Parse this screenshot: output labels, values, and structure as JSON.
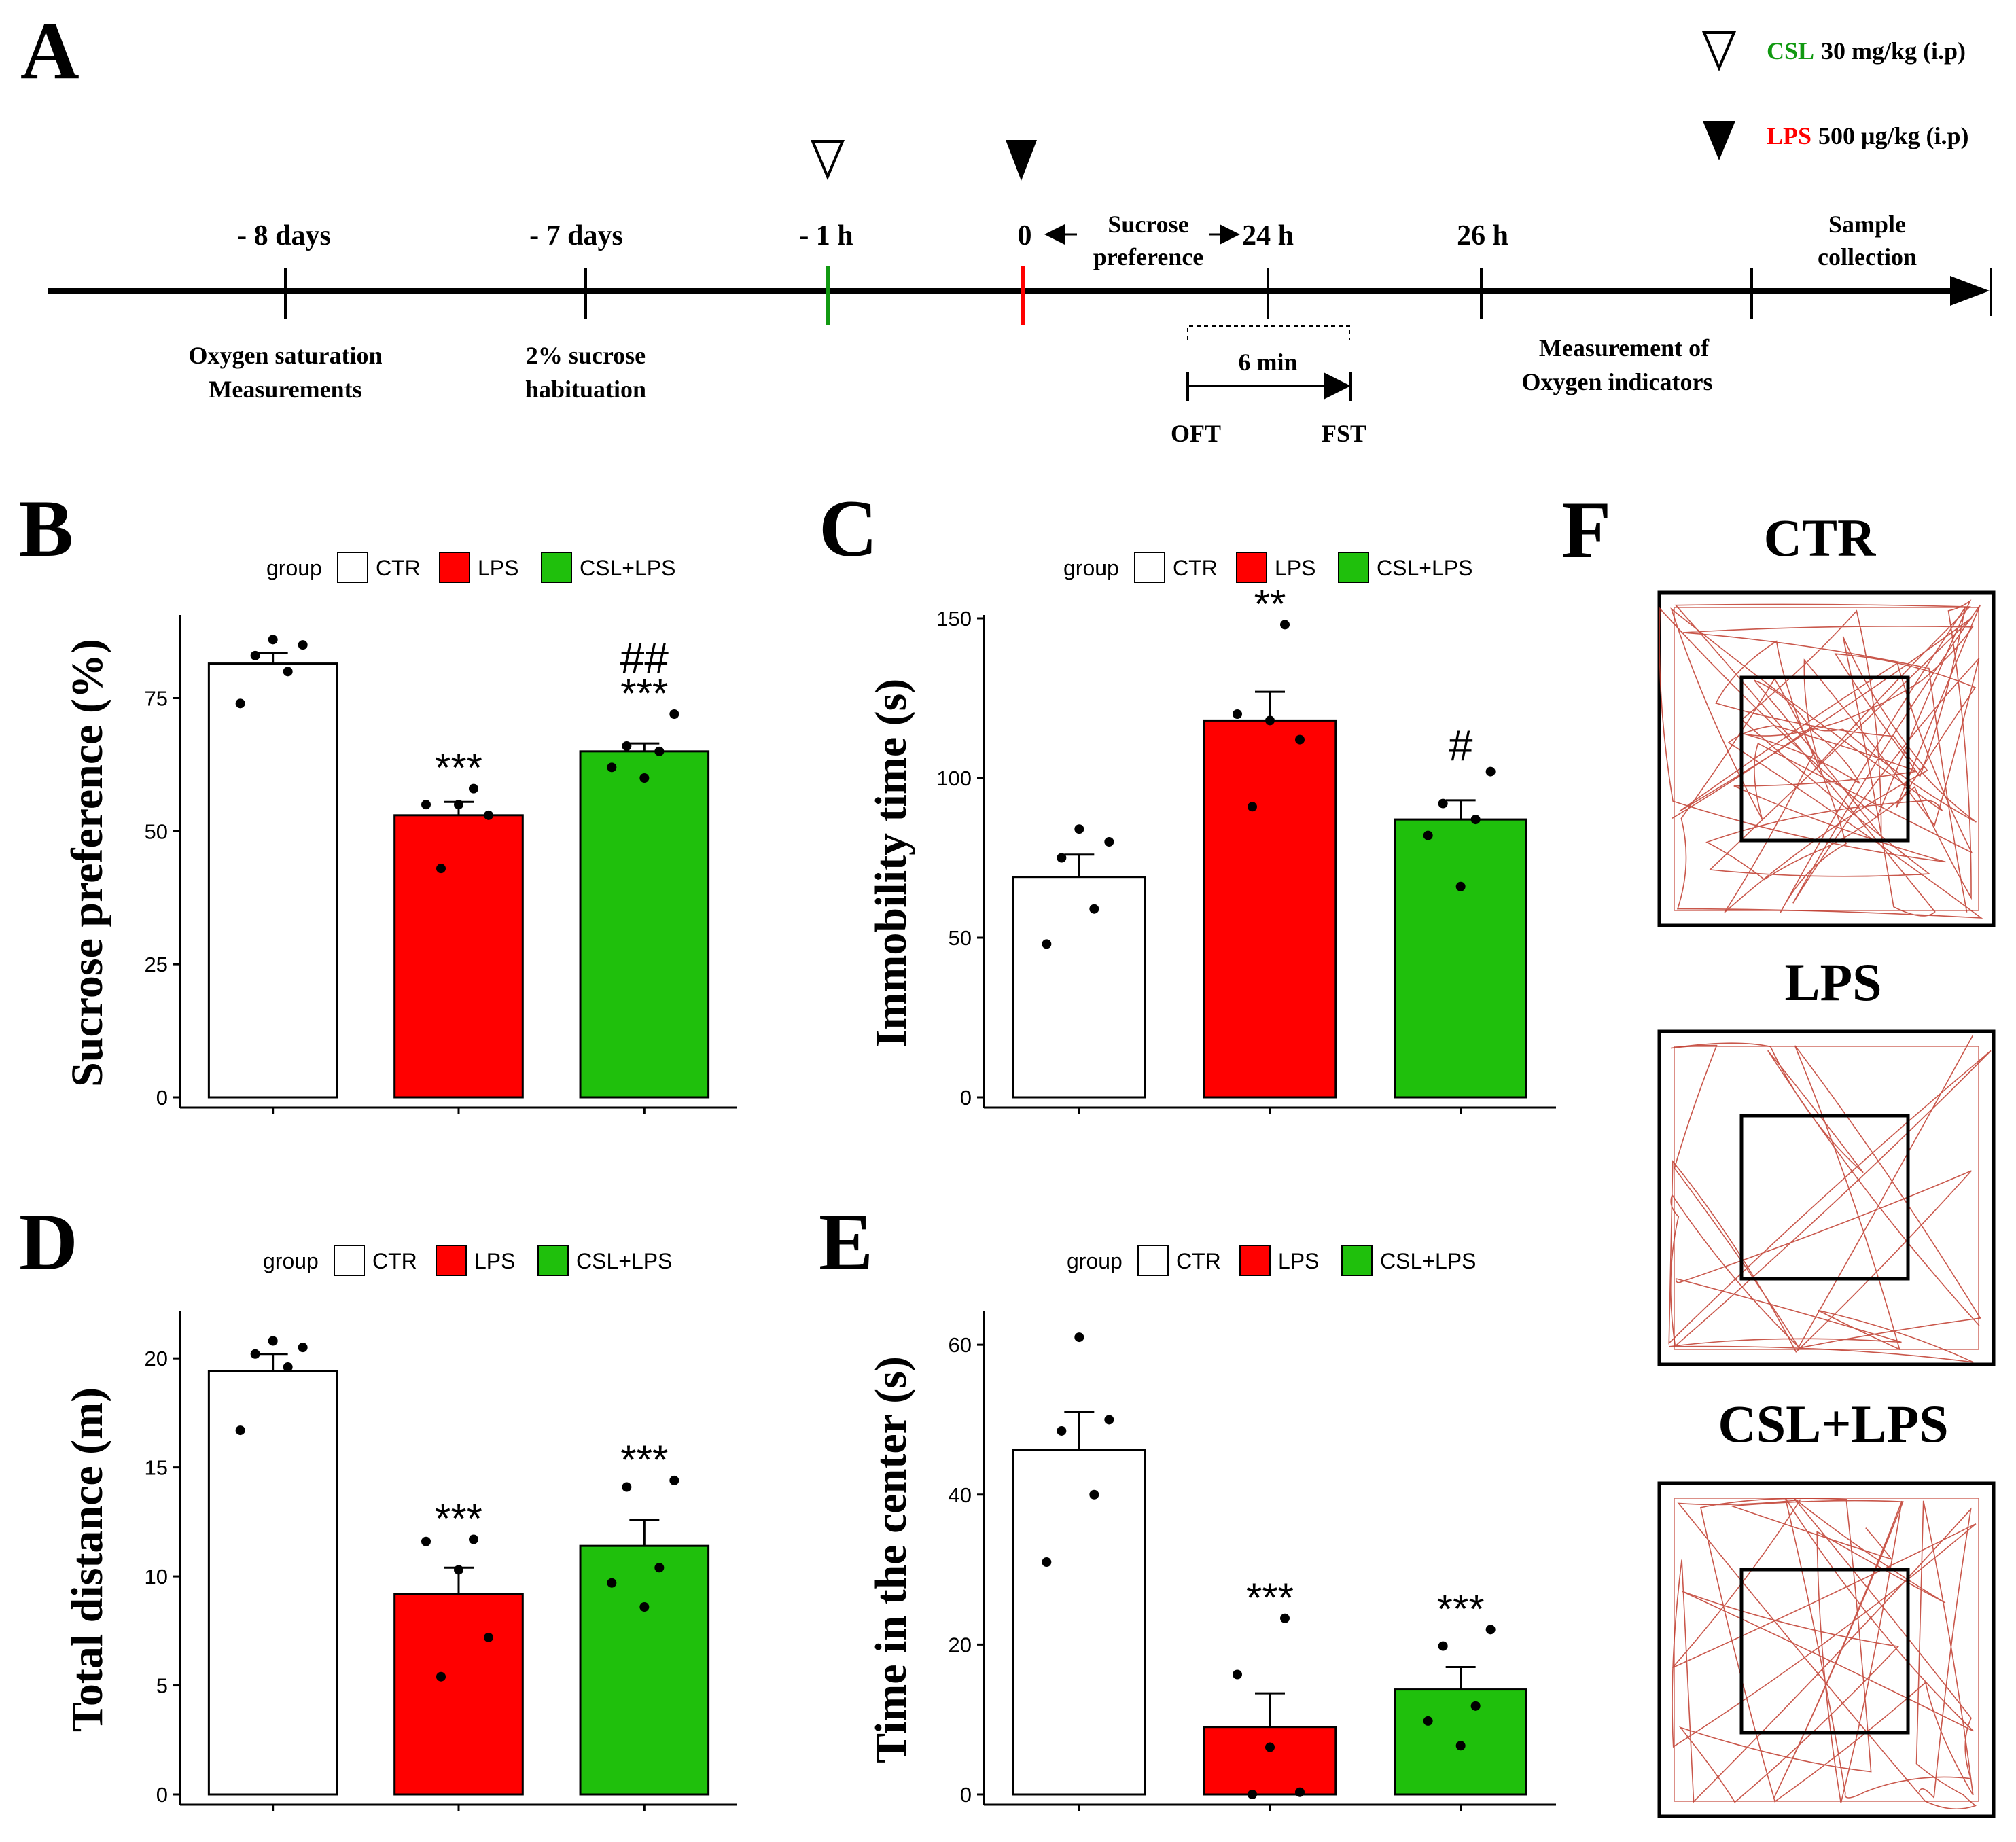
{
  "colors": {
    "ctr": "#ffffff",
    "lps": "#ff0000",
    "csl": "#1fc00c",
    "timeline_csl": "#119911",
    "timeline_lps": "#ff0000",
    "track": "#c0392b"
  },
  "panel_a": {
    "letter": "A",
    "legend": [
      {
        "icon": "open-triangle-icon",
        "drug": "CSL",
        "dose": "30 mg/kg (i.p)"
      },
      {
        "icon": "filled-triangle-icon",
        "drug": "LPS",
        "dose": "500 μg/kg (i.p)"
      }
    ],
    "ticks": [
      {
        "label": "- 8 days",
        "note1": "Oxygen saturation",
        "note2": "Measurements"
      },
      {
        "label": "- 7 days",
        "note1": "2% sucrose",
        "note2": "habituation"
      },
      {
        "label": "- 1 h"
      },
      {
        "label": "0"
      },
      {
        "label": "24 h"
      },
      {
        "label": "26 h",
        "note1": "Measurement of",
        "note2": "Oxygen indicators"
      },
      {
        "label": "",
        "top1": "Sample",
        "top2": "collection"
      }
    ],
    "sucrose1": "Sucrose",
    "sucrose2": "preference",
    "six_min": "6 min",
    "oft": "OFT",
    "fst": "FST"
  },
  "legend_group": "group",
  "chart_data": [
    {
      "panel": "B",
      "type": "bar",
      "categories": [
        "CTR",
        "LPS",
        "CSL+LPS"
      ],
      "values": [
        81.5,
        53,
        65
      ],
      "errors": [
        2,
        2.5,
        1.5
      ],
      "points": [
        [
          74,
          80,
          83,
          85,
          86
        ],
        [
          43,
          53,
          55,
          55,
          58
        ],
        [
          60,
          62,
          65,
          66,
          72
        ]
      ],
      "ylabel": "Sucrose preference (%)",
      "ylim": [
        0,
        90
      ],
      "yticks": [
        0,
        25,
        50,
        75
      ],
      "annotations": [
        "",
        "***",
        "***"
      ],
      "annotations2": [
        "",
        "",
        "##"
      ],
      "legend_title": "group",
      "legend_position": "top"
    },
    {
      "panel": "C",
      "type": "bar",
      "categories": [
        "CTR",
        "LPS",
        "CSL+LPS"
      ],
      "values": [
        69,
        118,
        87
      ],
      "errors": [
        7,
        9,
        6
      ],
      "points": [
        [
          48,
          59,
          75,
          80,
          84
        ],
        [
          91,
          112,
          118,
          120,
          148
        ],
        [
          66,
          82,
          87,
          92,
          102
        ]
      ],
      "ylabel": "Immobility time (s)",
      "ylim": [
        0,
        150
      ],
      "yticks": [
        0,
        50,
        100,
        150
      ],
      "annotations": [
        "",
        "**",
        "#"
      ],
      "annotations2": [
        "",
        "",
        ""
      ],
      "legend_title": "group",
      "legend_position": "top"
    },
    {
      "panel": "D",
      "type": "bar",
      "categories": [
        "CTR",
        "LPS",
        "CSL+LPS"
      ],
      "values": [
        19.4,
        9.2,
        11.4
      ],
      "errors": [
        0.8,
        1.2,
        1.2
      ],
      "points": [
        [
          16.7,
          19.6,
          20.2,
          20.5,
          20.8
        ],
        [
          5.4,
          7.2,
          10.3,
          11.6,
          11.7
        ],
        [
          8.6,
          9.7,
          10.4,
          14.1,
          14.4
        ]
      ],
      "ylabel": "Total distance (m)",
      "ylim": [
        0,
        22
      ],
      "yticks": [
        0,
        5,
        10,
        15,
        20
      ],
      "annotations": [
        "",
        "***",
        "***"
      ],
      "annotations2": [
        "",
        "",
        ""
      ],
      "legend_title": "group",
      "legend_position": "top"
    },
    {
      "panel": "E",
      "type": "bar",
      "categories": [
        "CTR",
        "LPS",
        "CSL+LPS"
      ],
      "values": [
        46,
        9,
        14
      ],
      "errors": [
        5,
        4.5,
        3
      ],
      "points": [
        [
          31,
          40,
          48.5,
          50,
          61
        ],
        [
          0,
          0.3,
          6.3,
          16,
          23.5
        ],
        [
          6.5,
          9.8,
          11.8,
          19.8,
          22
        ]
      ],
      "ylabel": "Time in the center (s)",
      "ylim": [
        0,
        64
      ],
      "yticks": [
        0,
        20,
        40,
        60
      ],
      "annotations": [
        "",
        "***",
        "***"
      ],
      "annotations2": [
        "",
        "",
        ""
      ],
      "legend_title": "group",
      "legend_position": "top"
    }
  ],
  "panel_f": {
    "letter": "F",
    "titles": [
      "CTR",
      "LPS",
      "CSL+LPS"
    ]
  }
}
